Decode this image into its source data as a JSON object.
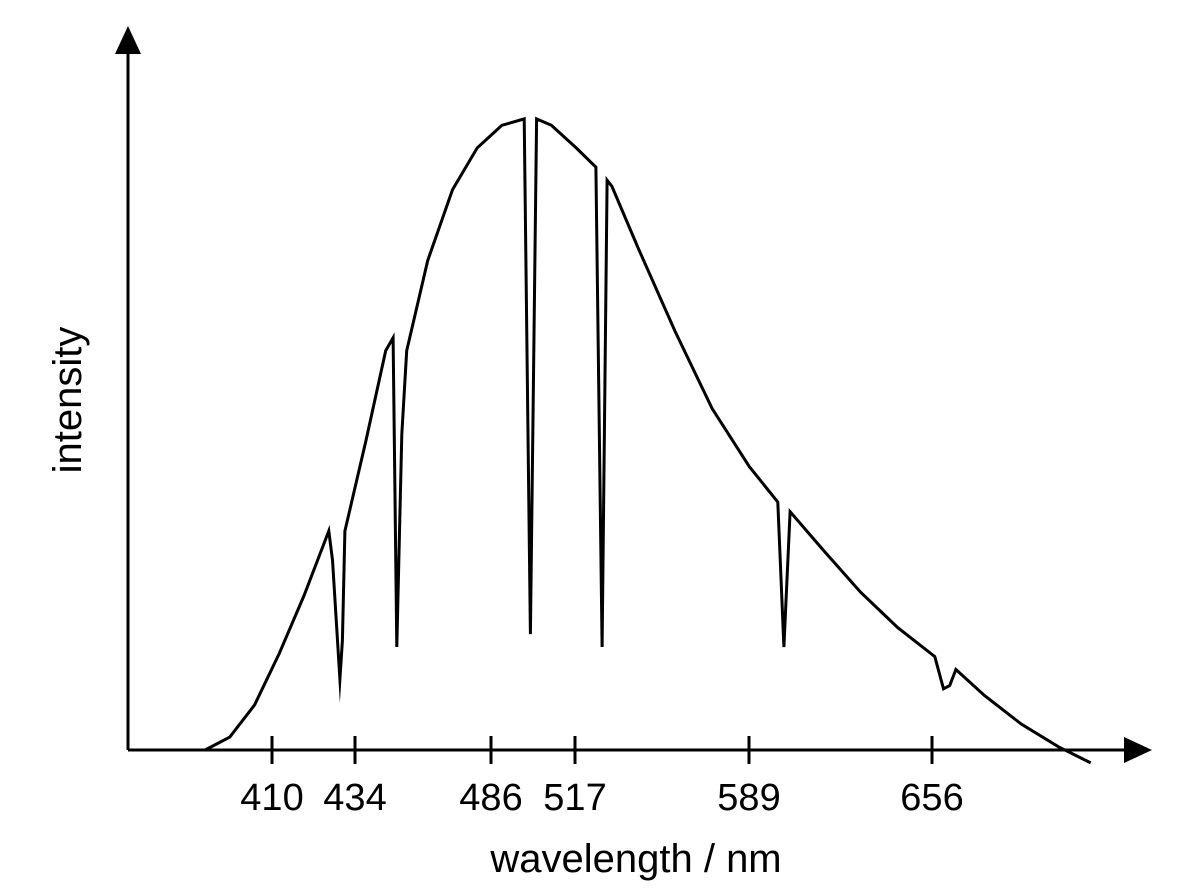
{
  "chart_data": {
    "type": "line",
    "title": "",
    "xlabel": "wavelength / nm",
    "ylabel": "intensity",
    "grid": false,
    "xlim": [
      340,
      720
    ],
    "ylim": [
      0,
      100
    ],
    "xticks": [
      410,
      434,
      486,
      517,
      589,
      656
    ],
    "x_arrow": true,
    "y_arrow": true,
    "series": [
      {
        "values_note": "",
        "x": [
          355,
          365,
          375,
          385,
          395,
          405,
          406.5,
          409.5,
          410.5,
          411.5,
          420,
          428,
          431,
          432.5,
          434.5,
          436.5,
          445,
          455,
          465,
          475,
          484,
          486.5,
          489,
          495,
          505,
          513,
          515.5,
          517.5,
          519.5,
          530,
          545,
          560,
          575,
          586.5,
          589,
          591.5,
          605,
          620,
          635,
          650,
          653.5,
          656,
          658.5,
          670,
          685,
          700,
          713
        ],
        "y": [
          0,
          2,
          7,
          15,
          24,
          34,
          29.5,
          11,
          17,
          34,
          48,
          62,
          64,
          16,
          49,
          62,
          76,
          87,
          93.5,
          97,
          98,
          18,
          98,
          97,
          93.5,
          90.5,
          16,
          88.5,
          87.5,
          78,
          65,
          53,
          44,
          38.5,
          16,
          37,
          31,
          24.5,
          19,
          14.5,
          9.5,
          10,
          12.5,
          8.5,
          4,
          0.5,
          -2
        ],
        "name": ""
      }
    ]
  }
}
